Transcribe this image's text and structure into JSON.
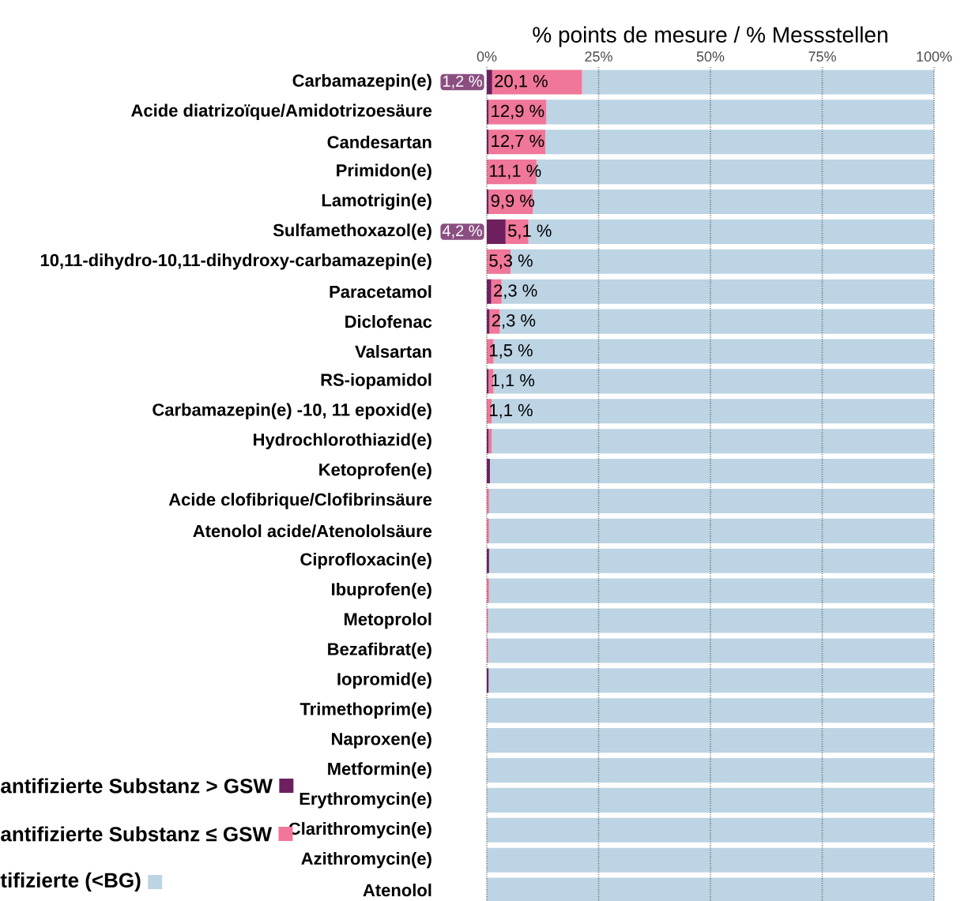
{
  "chart_data": {
    "type": "bar",
    "orientation": "horizontal",
    "stacked": true,
    "xlabel": "% points de mesure / % Messstellen",
    "categories": [
      "Carbamazepin(e)",
      "Acide diatrizoïque/Amidotrizoesäure",
      "Candesartan",
      "Primidon(e)",
      "Lamotrigin(e)",
      "Sulfamethoxazol(e)",
      "10,11-dihydro-10,11-dihydroxy-carbamazepin(e)",
      "Paracetamol",
      "Diclofenac",
      "Valsartan",
      "RS-iopamidol",
      "Carbamazepin(e) -10, 11 epoxid(e)",
      "Hydrochlorothiazid(e)",
      "Ketoprofen(e)",
      "Acide clofibrique/Clofibrinsäure",
      "Atenolol acide/Atenololsäure",
      "Ciprofloxacin(e)",
      "Ibuprofen(e)",
      "Metoprolol",
      "Bezafibrat(e)",
      "Iopromid(e)",
      "Trimethoprim(e)",
      "Naproxen(e)",
      "Metformin(e)",
      "Erythromycin(e)",
      "Clarithromycin(e)",
      "Azithromycin(e)",
      "Atenolol"
    ],
    "series": [
      {
        "name": "antifizierte Substanz > GSW",
        "color": "#6e1f5e",
        "values": [
          1.2,
          0.4,
          0.4,
          0,
          0.4,
          4.2,
          0,
          1.0,
          0.6,
          0,
          0.4,
          0,
          0.4,
          0.7,
          0,
          0,
          0.5,
          0,
          0,
          0,
          0.4,
          0,
          0,
          0,
          0,
          0,
          0,
          0
        ],
        "value_labels": [
          "1,2 %",
          null,
          null,
          null,
          null,
          "4,2 %",
          null,
          null,
          null,
          null,
          null,
          null,
          null,
          null,
          null,
          null,
          null,
          null,
          null,
          null,
          null,
          null,
          null,
          null,
          null,
          null,
          null,
          null
        ]
      },
      {
        "name": "antifizierte Substanz ≤ GSW",
        "color": "#f07799",
        "values": [
          20.1,
          12.9,
          12.7,
          11.1,
          9.9,
          5.1,
          5.3,
          2.3,
          2.3,
          1.5,
          1.1,
          1.1,
          0.7,
          0,
          0.5,
          0.5,
          0,
          0.5,
          0.3,
          0.3,
          0,
          0,
          0,
          0,
          0,
          0,
          0,
          0
        ],
        "value_labels": [
          "20,1 %",
          "12,9 %",
          "12,7 %",
          "11,1 %",
          "9,9 %",
          "5,1 %",
          "5,3 %",
          "2,3 %",
          "2,3 %",
          "1,5 %",
          "1,1 %",
          "1,1 %",
          null,
          null,
          null,
          null,
          null,
          null,
          null,
          null,
          null,
          null,
          null,
          null,
          null,
          null,
          null,
          null
        ]
      },
      {
        "name": "tifizierte (<BG)",
        "color": "#bcd4e4",
        "values": [
          78.7,
          86.7,
          86.9,
          88.9,
          89.7,
          90.7,
          94.7,
          96.7,
          97.1,
          98.5,
          98.5,
          98.9,
          98.9,
          99.3,
          99.5,
          99.5,
          99.5,
          99.5,
          99.7,
          99.7,
          99.6,
          100,
          100,
          100,
          100,
          100,
          100,
          100
        ]
      }
    ],
    "xlim": [
      0,
      100
    ],
    "xticks": [
      {
        "value": 0,
        "label": "0%"
      },
      {
        "value": 25,
        "label": "25%"
      },
      {
        "value": 50,
        "label": "50%"
      },
      {
        "value": 75,
        "label": "75%"
      },
      {
        "value": 100,
        "label": "100%"
      }
    ],
    "grid": "x",
    "legend": "bottom left"
  }
}
